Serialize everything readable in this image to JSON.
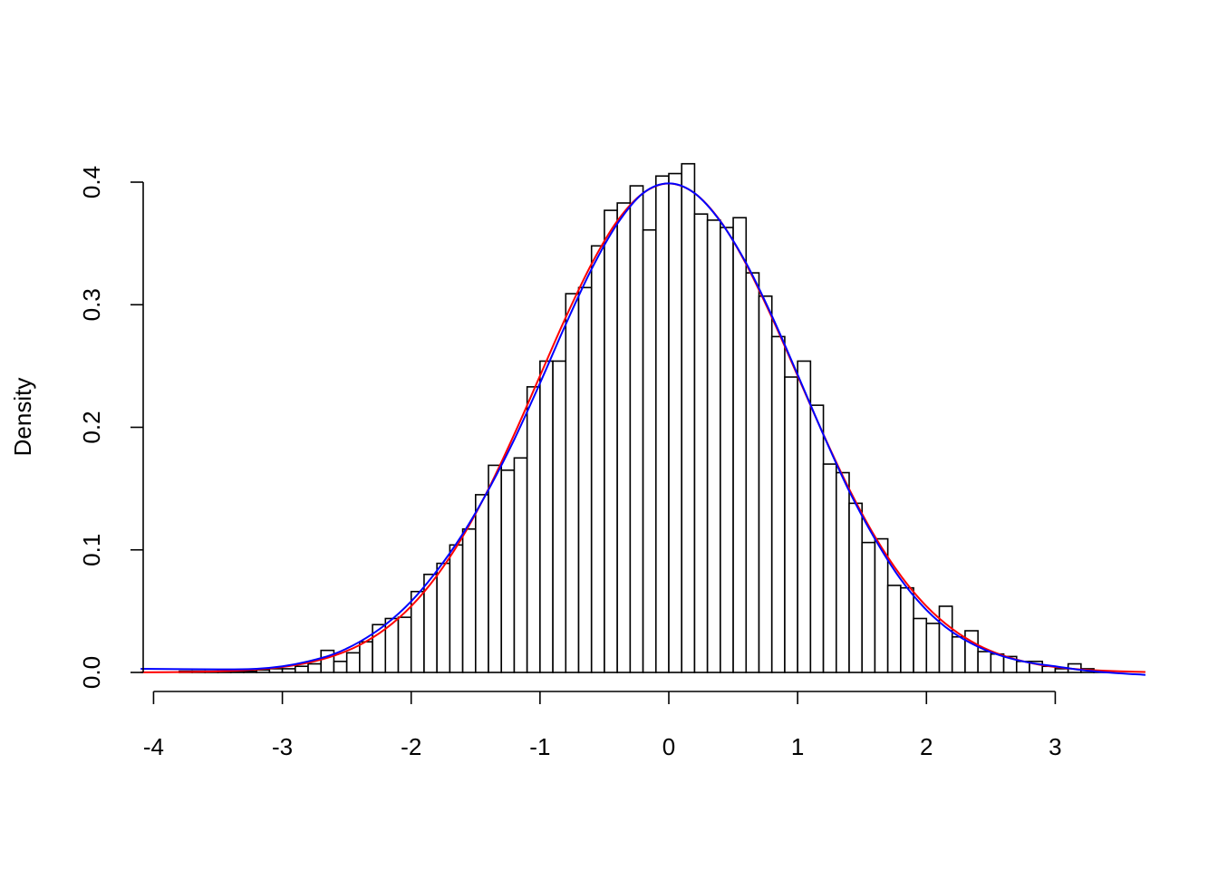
{
  "chart_data": {
    "type": "histogram",
    "title": "",
    "xlabel": "",
    "ylabel": "Density",
    "xlim": [
      -4.1,
      3.7
    ],
    "ylim": [
      0,
      0.4
    ],
    "x_ticks": [
      -4,
      -3,
      -2,
      -1,
      0,
      1,
      2,
      3
    ],
    "x_tick_labels": [
      "-4",
      "-3",
      "-2",
      "-1",
      "0",
      "1",
      "2",
      "3"
    ],
    "y_ticks": [
      0,
      0.1,
      0.2,
      0.3,
      0.4
    ],
    "y_tick_labels": [
      "0.0",
      "0.1",
      "0.2",
      "0.3",
      "0.4"
    ],
    "grid": false,
    "bin_start": -3.8,
    "bin_width": 0.1,
    "bar_fill": "#ffffff",
    "bar_stroke": "#000000",
    "bars": [
      0.001,
      0.001,
      0.001,
      0.001,
      0.001,
      0.001,
      0.002,
      0.003,
      0.003,
      0.005,
      0.007,
      0.018,
      0.009,
      0.016,
      0.025,
      0.039,
      0.044,
      0.045,
      0.066,
      0.08,
      0.089,
      0.104,
      0.117,
      0.145,
      0.169,
      0.165,
      0.175,
      0.233,
      0.254,
      0.254,
      0.309,
      0.314,
      0.348,
      0.377,
      0.383,
      0.397,
      0.361,
      0.405,
      0.407,
      0.415,
      0.374,
      0.369,
      0.363,
      0.371,
      0.326,
      0.307,
      0.274,
      0.241,
      0.254,
      0.218,
      0.17,
      0.163,
      0.138,
      0.106,
      0.109,
      0.071,
      0.069,
      0.044,
      0.04,
      0.054,
      0.029,
      0.034,
      0.017,
      0.015,
      0.013,
      0.009,
      0.009,
      0.005,
      0.003,
      0.007,
      0.003,
      0.001
    ],
    "series": [
      {
        "color": "#ff0000",
        "x": [
          -4.1,
          -3.8,
          -3.5,
          -3.2,
          -3.0,
          -2.8,
          -2.6,
          -2.4,
          -2.2,
          -2.0,
          -1.8,
          -1.6,
          -1.4,
          -1.2,
          -1.0,
          -0.8,
          -0.6,
          -0.4,
          -0.2,
          0,
          0.2,
          0.4,
          0.6,
          0.8,
          1.0,
          1.2,
          1.4,
          1.6,
          1.8,
          2.0,
          2.2,
          2.4,
          2.6,
          2.8,
          3.0,
          3.2,
          3.5,
          3.7
        ],
        "y": [
          0.0001,
          0.0003,
          0.0009,
          0.0024,
          0.0044,
          0.0079,
          0.0136,
          0.0224,
          0.0355,
          0.054,
          0.079,
          0.1109,
          0.1497,
          0.1942,
          0.242,
          0.2897,
          0.3332,
          0.3683,
          0.391,
          0.3989,
          0.391,
          0.3683,
          0.3332,
          0.2897,
          0.242,
          0.1942,
          0.1497,
          0.1109,
          0.079,
          0.054,
          0.0355,
          0.0224,
          0.0136,
          0.0079,
          0.0044,
          0.0024,
          0.0009,
          0.0004
        ]
      },
      {
        "color": "#0000ff",
        "x": [
          -4.1,
          -3.5,
          -3.2,
          -3.0,
          -2.8,
          -2.6,
          -2.4,
          -2.2,
          -2.0,
          -1.8,
          -1.6,
          -1.4,
          -1.2,
          -1.0,
          -0.8,
          -0.6,
          -0.4,
          -0.2,
          0,
          0.2,
          0.4,
          0.6,
          0.8,
          1.0,
          1.2,
          1.4,
          1.6,
          1.8,
          2.0,
          2.2,
          2.4,
          2.6,
          2.8,
          3.0,
          3.2,
          3.4,
          3.7
        ],
        "y": [
          0.003,
          0.0025,
          0.003,
          0.005,
          0.009,
          0.015,
          0.025,
          0.039,
          0.058,
          0.083,
          0.113,
          0.149,
          0.19,
          0.236,
          0.284,
          0.329,
          0.366,
          0.391,
          0.399,
          0.391,
          0.368,
          0.334,
          0.291,
          0.243,
          0.194,
          0.148,
          0.109,
          0.076,
          0.051,
          0.033,
          0.021,
          0.013,
          0.008,
          0.005,
          0.002,
          0.0,
          -0.002
        ]
      }
    ]
  }
}
